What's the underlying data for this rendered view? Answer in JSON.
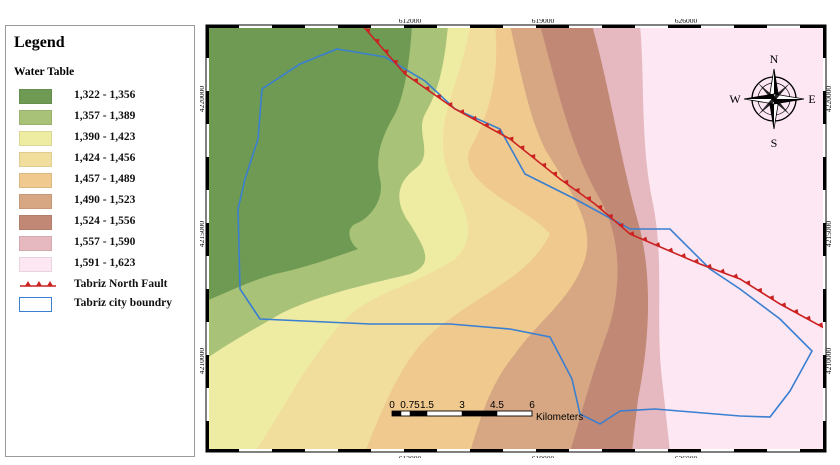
{
  "legend": {
    "title": "Legend",
    "subtitle": "Water Table",
    "classes": [
      {
        "label": "1,322 - 1,356",
        "color": "#6e9a54"
      },
      {
        "label": "1,357 - 1,389",
        "color": "#a8c277"
      },
      {
        "label": "1,390 - 1,423",
        "color": "#eeeba3"
      },
      {
        "label": "1,424 - 1,456",
        "color": "#f1de9d"
      },
      {
        "label": "1,457 - 1,489",
        "color": "#efc98e"
      },
      {
        "label": "1,490 - 1,523",
        "color": "#d6a782"
      },
      {
        "label": "1,524 - 1,556",
        "color": "#c18876"
      },
      {
        "label": "1,557 - 1,590",
        "color": "#e6b8bf"
      },
      {
        "label": "1,591 - 1,623",
        "color": "#fce7f3"
      }
    ],
    "fault_label": "Tabriz North Fault",
    "boundary_label": "Tabriz city boundry",
    "fault_color": "#cc2222",
    "boundary_color": "#3a7fd0"
  },
  "map": {
    "x_ticks": [
      "612000",
      "619000",
      "626000"
    ],
    "y_ticks": [
      "4220000",
      "4215000",
      "4210000"
    ],
    "north_label": "N",
    "south_label": "S",
    "east_label": "E",
    "west_label": "W",
    "scale_labels": [
      "0",
      "0.75",
      "1.5",
      "3",
      "4.5",
      "6"
    ],
    "scale_unit": "Kilometers"
  }
}
